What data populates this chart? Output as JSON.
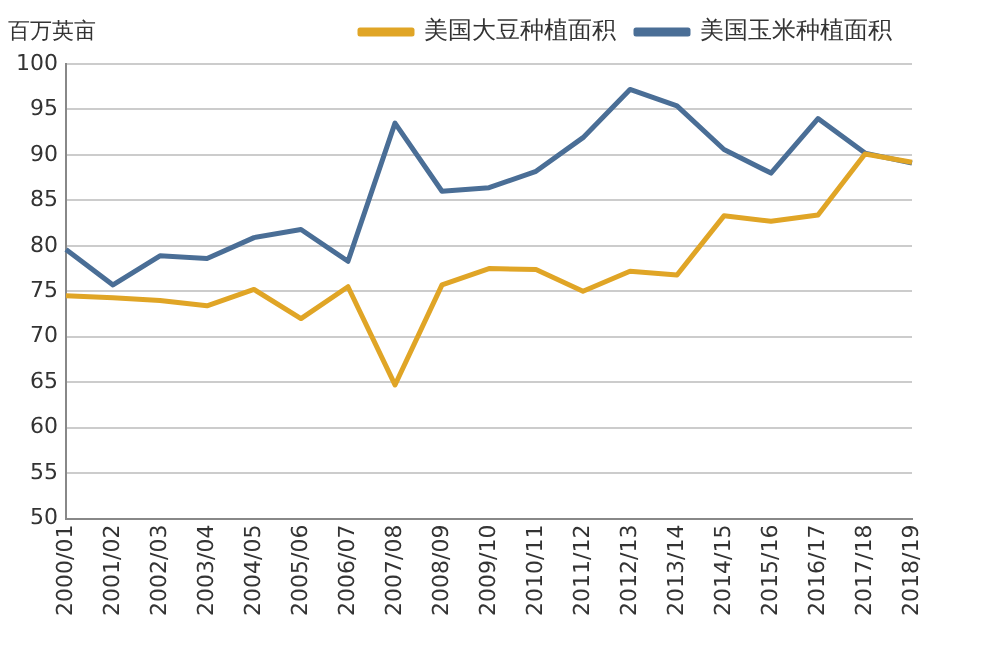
{
  "chart_data": {
    "type": "line",
    "ylabel": "百万英亩",
    "categories": [
      "2000/01",
      "2001/02",
      "2002/03",
      "2003/04",
      "2004/05",
      "2005/06",
      "2006/07",
      "2007/08",
      "2008/09",
      "2009/10",
      "2010/11",
      "2011/12",
      "2012/13",
      "2013/14",
      "2014/15",
      "2015/16",
      "2016/17",
      "2017/18",
      "2018/19"
    ],
    "series": [
      {
        "name": "美国大豆种植面积",
        "color": "#e0a526",
        "values": [
          74.5,
          74.3,
          74.0,
          73.4,
          75.2,
          72.0,
          75.5,
          64.7,
          75.7,
          77.5,
          77.4,
          75.0,
          77.2,
          76.8,
          83.3,
          82.7,
          83.4,
          90.1,
          89.2
        ]
      },
      {
        "name": "美国玉米种植面积",
        "color": "#4a6e96",
        "values": [
          79.6,
          75.7,
          78.9,
          78.6,
          80.9,
          81.8,
          78.3,
          93.5,
          86.0,
          86.4,
          88.2,
          91.9,
          97.2,
          95.4,
          90.6,
          88.0,
          94.0,
          90.2,
          89.1
        ]
      }
    ],
    "ylim": [
      50,
      100
    ],
    "yticks": [
      50,
      55,
      60,
      65,
      70,
      75,
      80,
      85,
      90,
      95,
      100
    ],
    "grid": "y",
    "legend": "top",
    "marker": "none",
    "line_style": "solid"
  }
}
